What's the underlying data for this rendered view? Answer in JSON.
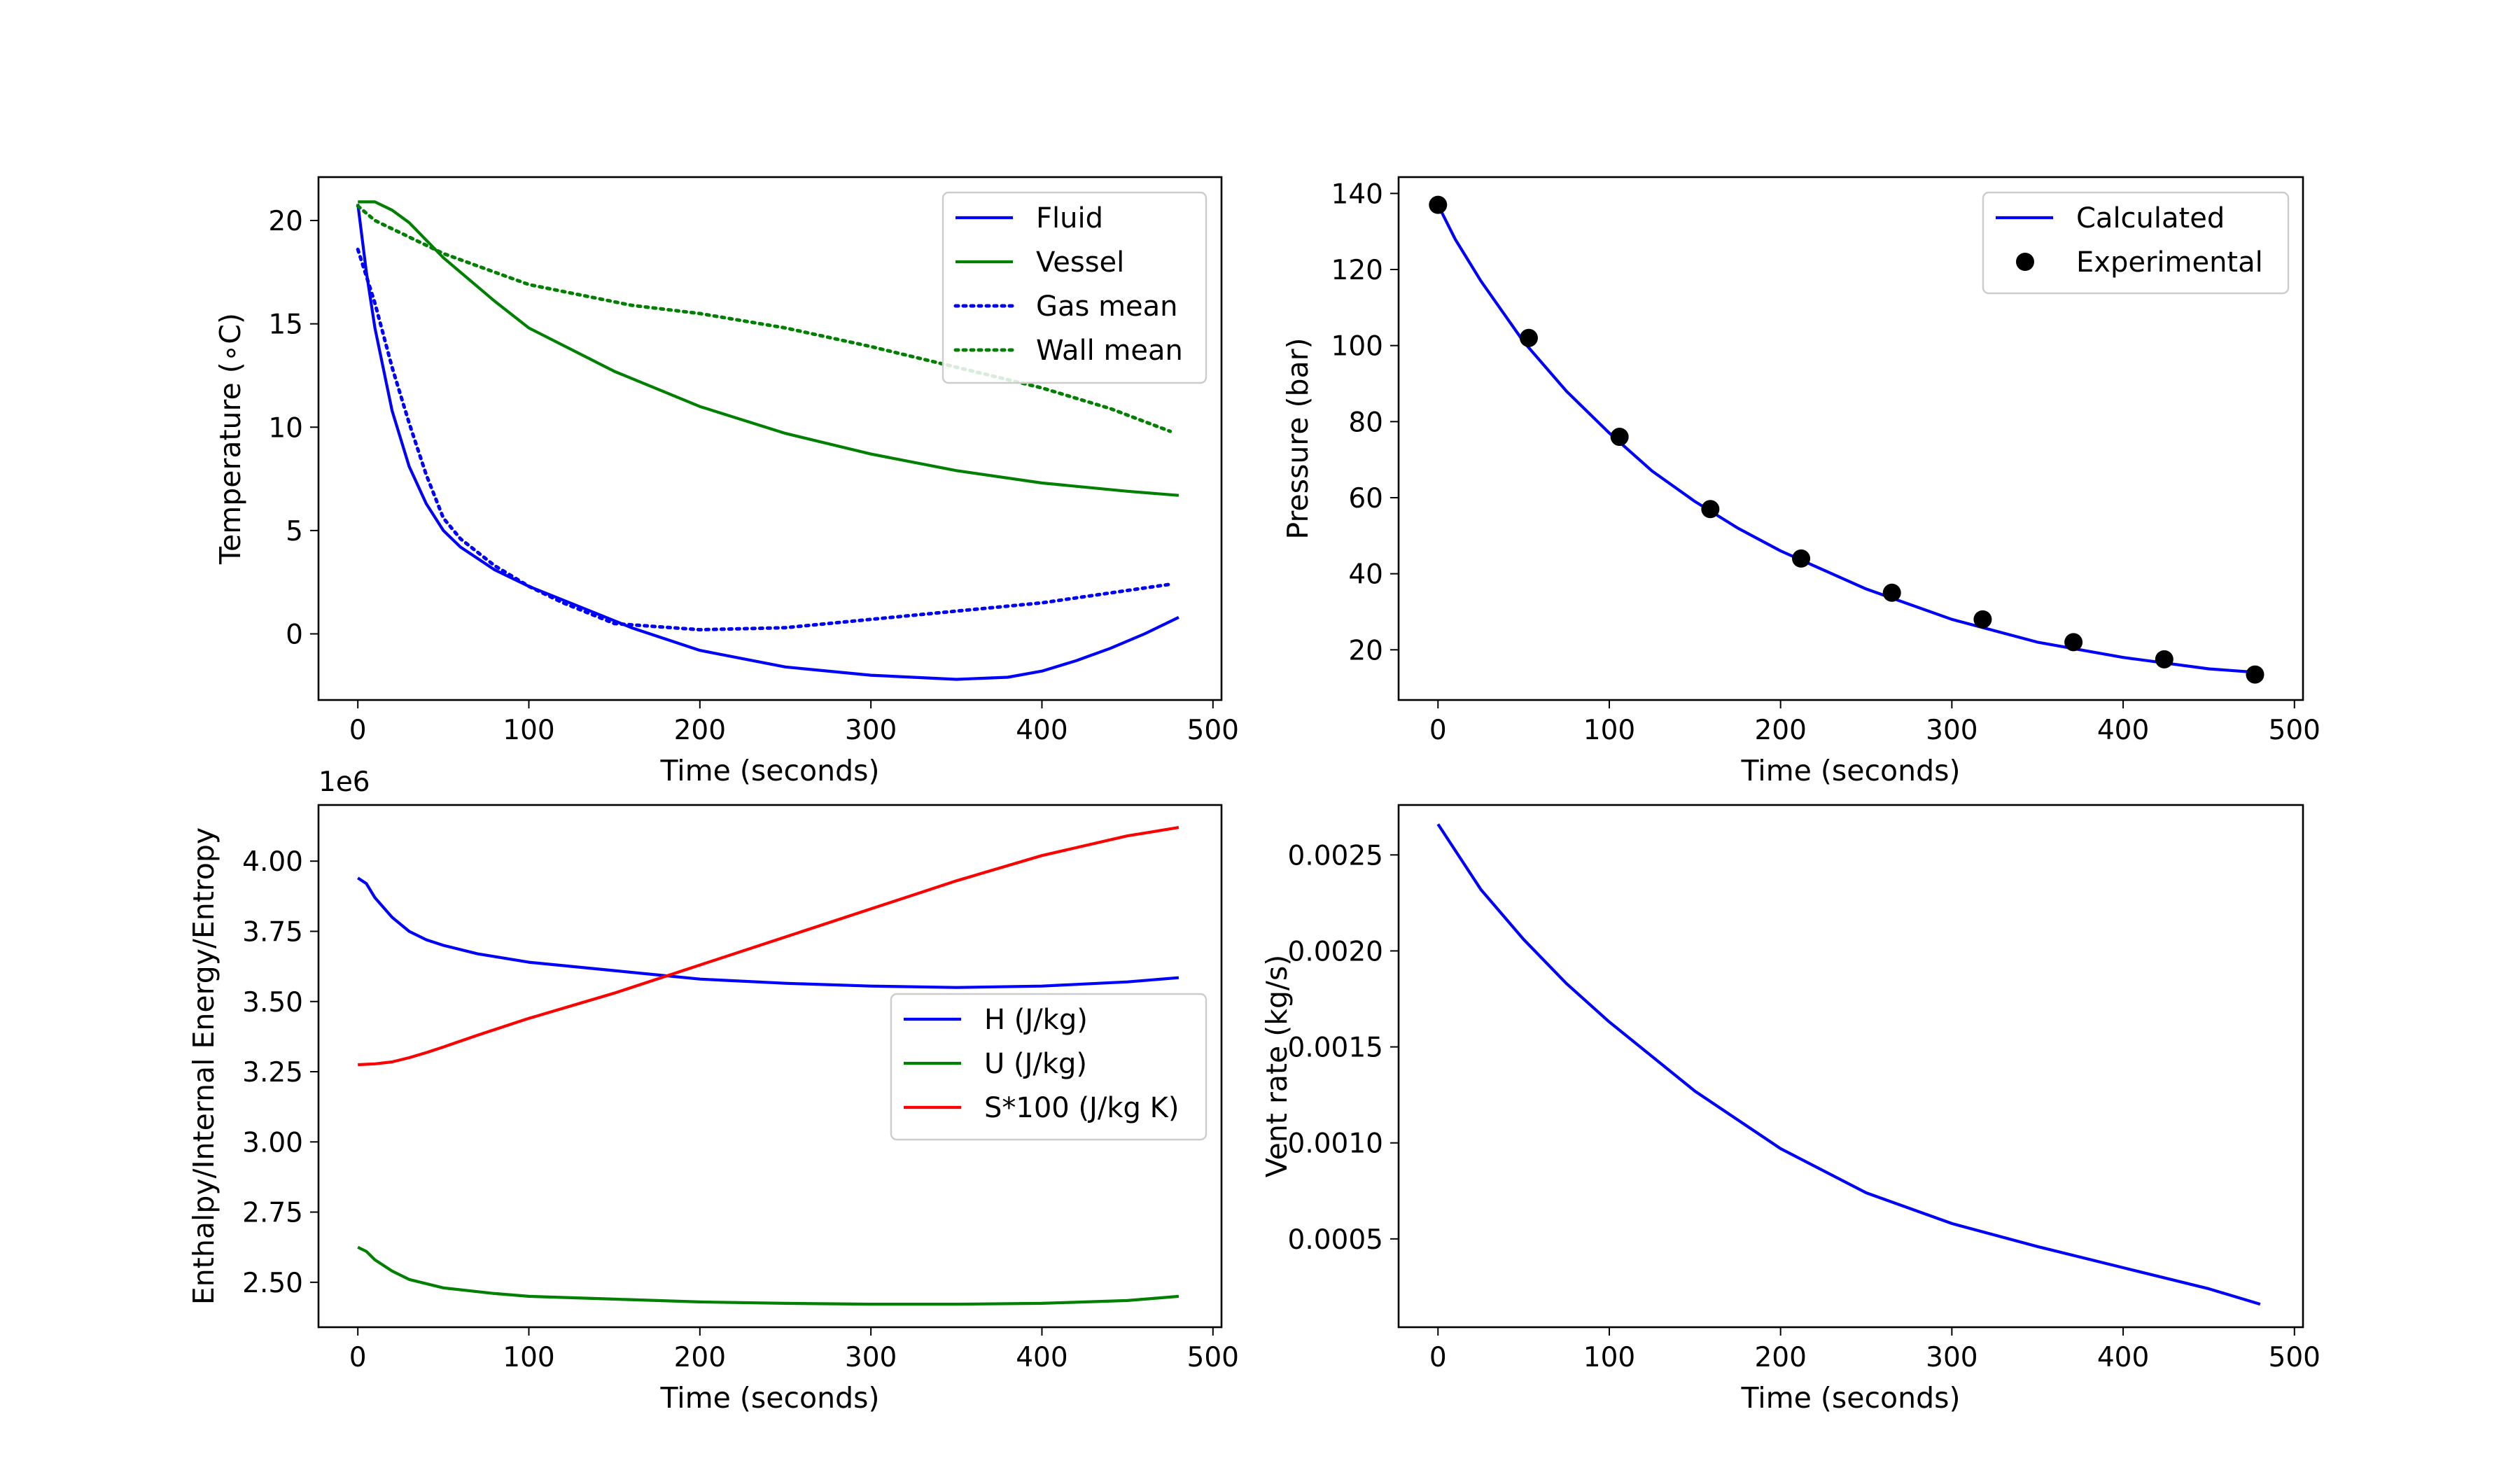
{
  "chart_data": [
    {
      "id": "temperature",
      "type": "line",
      "xlabel": "Time (seconds)",
      "ylabel": "Temperature (∘C)",
      "xlim": [
        -23,
        505
      ],
      "ylim": [
        -3.2,
        22.1
      ],
      "xticks": [
        0,
        100,
        200,
        300,
        400,
        500
      ],
      "yticks": [
        0,
        5,
        10,
        15,
        20
      ],
      "legend_position": "top-right",
      "series": [
        {
          "name": "Fluid",
          "color": "#0000ff",
          "style": "solid",
          "x": [
            0,
            5,
            10,
            20,
            30,
            40,
            50,
            60,
            80,
            100,
            130,
            160,
            200,
            250,
            300,
            350,
            380,
            400,
            420,
            440,
            460,
            480
          ],
          "y": [
            20.8,
            17.5,
            14.8,
            10.8,
            8.1,
            6.3,
            5.0,
            4.2,
            3.1,
            2.3,
            1.3,
            0.3,
            -0.8,
            -1.6,
            -2.0,
            -2.2,
            -2.1,
            -1.8,
            -1.3,
            -0.7,
            0.0,
            0.8
          ]
        },
        {
          "name": "Vessel",
          "color": "#008000",
          "style": "solid",
          "x": [
            0,
            10,
            20,
            30,
            50,
            80,
            100,
            150,
            200,
            250,
            300,
            350,
            400,
            450,
            480
          ],
          "y": [
            20.9,
            20.9,
            20.5,
            19.9,
            18.2,
            16.1,
            14.8,
            12.7,
            11.0,
            9.7,
            8.7,
            7.9,
            7.3,
            6.9,
            6.7
          ]
        },
        {
          "name": "Gas mean",
          "color": "#0000ff",
          "style": "dotted",
          "x": [
            0,
            10,
            20,
            30,
            40,
            50,
            60,
            80,
            100,
            120,
            150,
            200,
            250,
            300,
            350,
            400,
            450,
            475
          ],
          "y": [
            18.6,
            16.0,
            12.9,
            10.2,
            7.7,
            5.6,
            4.6,
            3.3,
            2.3,
            1.5,
            0.5,
            0.2,
            0.3,
            0.7,
            1.1,
            1.5,
            2.1,
            2.4
          ]
        },
        {
          "name": "Wall mean",
          "color": "#008000",
          "style": "dotted",
          "x": [
            0,
            10,
            30,
            50,
            80,
            100,
            130,
            160,
            200,
            250,
            300,
            350,
            400,
            440,
            475
          ],
          "y": [
            20.7,
            20.0,
            19.2,
            18.4,
            17.5,
            16.9,
            16.4,
            15.9,
            15.5,
            14.8,
            13.9,
            12.9,
            11.9,
            10.9,
            9.8
          ]
        }
      ]
    },
    {
      "id": "pressure",
      "type": "line",
      "xlabel": "Time (seconds)",
      "ylabel": "Pressure (bar)",
      "xlim": [
        -23,
        505
      ],
      "ylim": [
        6.8,
        144.3
      ],
      "xticks": [
        0,
        100,
        200,
        300,
        400,
        500
      ],
      "yticks": [
        20,
        40,
        60,
        80,
        100,
        120,
        140
      ],
      "legend_position": "top-right",
      "series": [
        {
          "name": "Calculated",
          "color": "#0000ff",
          "style": "solid",
          "x": [
            0,
            10,
            25,
            50,
            75,
            100,
            125,
            150,
            175,
            200,
            250,
            300,
            350,
            400,
            450,
            480
          ],
          "y": [
            137,
            128,
            117,
            101,
            88,
            77,
            67,
            59,
            52,
            46,
            36,
            28,
            22,
            18,
            15,
            14
          ]
        },
        {
          "name": "Experimental",
          "color": "#000000",
          "style": "markers",
          "x": [
            0,
            53,
            106,
            159,
            212,
            265,
            318,
            371,
            424,
            477
          ],
          "y": [
            137,
            102,
            76,
            57,
            44,
            35,
            28,
            22,
            17.5,
            13.5
          ]
        }
      ]
    },
    {
      "id": "energy",
      "type": "line",
      "xlabel": "Time (seconds)",
      "ylabel": "Enthalpy/Internal Energy/Entropy",
      "offset_label": "1e6",
      "xlim": [
        -23,
        505
      ],
      "ylim": [
        2.34,
        4.2
      ],
      "xticks": [
        0,
        100,
        200,
        300,
        400,
        500
      ],
      "yticks": [
        2.5,
        2.75,
        3.0,
        3.25,
        3.5,
        3.75,
        4.0
      ],
      "ytick_labels": [
        "2.50",
        "2.75",
        "3.00",
        "3.25",
        "3.50",
        "3.75",
        "4.00"
      ],
      "legend_position": "center-right",
      "series": [
        {
          "name": "H (J/kg)",
          "color": "#0000ff",
          "style": "solid",
          "x": [
            0,
            5,
            10,
            20,
            30,
            40,
            50,
            70,
            100,
            150,
            200,
            250,
            300,
            350,
            400,
            450,
            480
          ],
          "y": [
            3.94,
            3.92,
            3.87,
            3.8,
            3.75,
            3.72,
            3.7,
            3.67,
            3.64,
            3.61,
            3.58,
            3.565,
            3.555,
            3.55,
            3.555,
            3.57,
            3.585
          ]
        },
        {
          "name": "U (J/kg)",
          "color": "#008000",
          "style": "solid",
          "x": [
            0,
            5,
            10,
            20,
            30,
            50,
            80,
            100,
            150,
            200,
            250,
            300,
            350,
            400,
            450,
            480
          ],
          "y": [
            2.625,
            2.61,
            2.58,
            2.54,
            2.51,
            2.48,
            2.46,
            2.45,
            2.44,
            2.43,
            2.425,
            2.422,
            2.422,
            2.425,
            2.435,
            2.45
          ]
        },
        {
          "name": "S*100 (J/kg K)",
          "color": "#ff0000",
          "style": "solid",
          "x": [
            0,
            10,
            20,
            30,
            40,
            50,
            70,
            100,
            150,
            200,
            250,
            300,
            350,
            400,
            450,
            480
          ],
          "y": [
            3.275,
            3.278,
            3.285,
            3.3,
            3.318,
            3.338,
            3.38,
            3.44,
            3.53,
            3.63,
            3.73,
            3.83,
            3.93,
            4.02,
            4.09,
            4.12
          ]
        }
      ]
    },
    {
      "id": "vent",
      "type": "line",
      "xlabel": "Time (seconds)",
      "ylabel": "Vent rate (kg/s)",
      "xlim": [
        -23,
        505
      ],
      "ylim": [
        4e-05,
        0.00276
      ],
      "xticks": [
        0,
        100,
        200,
        300,
        400,
        500
      ],
      "yticks": [
        0.0005,
        0.001,
        0.0015,
        0.002,
        0.0025
      ],
      "ytick_labels": [
        "0.0005",
        "0.0010",
        "0.0015",
        "0.0020",
        "0.0025"
      ],
      "series": [
        {
          "name": "Vent rate",
          "color": "#0000ff",
          "style": "solid",
          "x": [
            0,
            25,
            50,
            75,
            100,
            150,
            200,
            250,
            300,
            350,
            400,
            450,
            480
          ],
          "y": [
            0.00266,
            0.00232,
            0.00206,
            0.00183,
            0.00163,
            0.00127,
            0.00097,
            0.00074,
            0.00058,
            0.00046,
            0.00035,
            0.00024,
            0.00016
          ]
        }
      ]
    }
  ]
}
